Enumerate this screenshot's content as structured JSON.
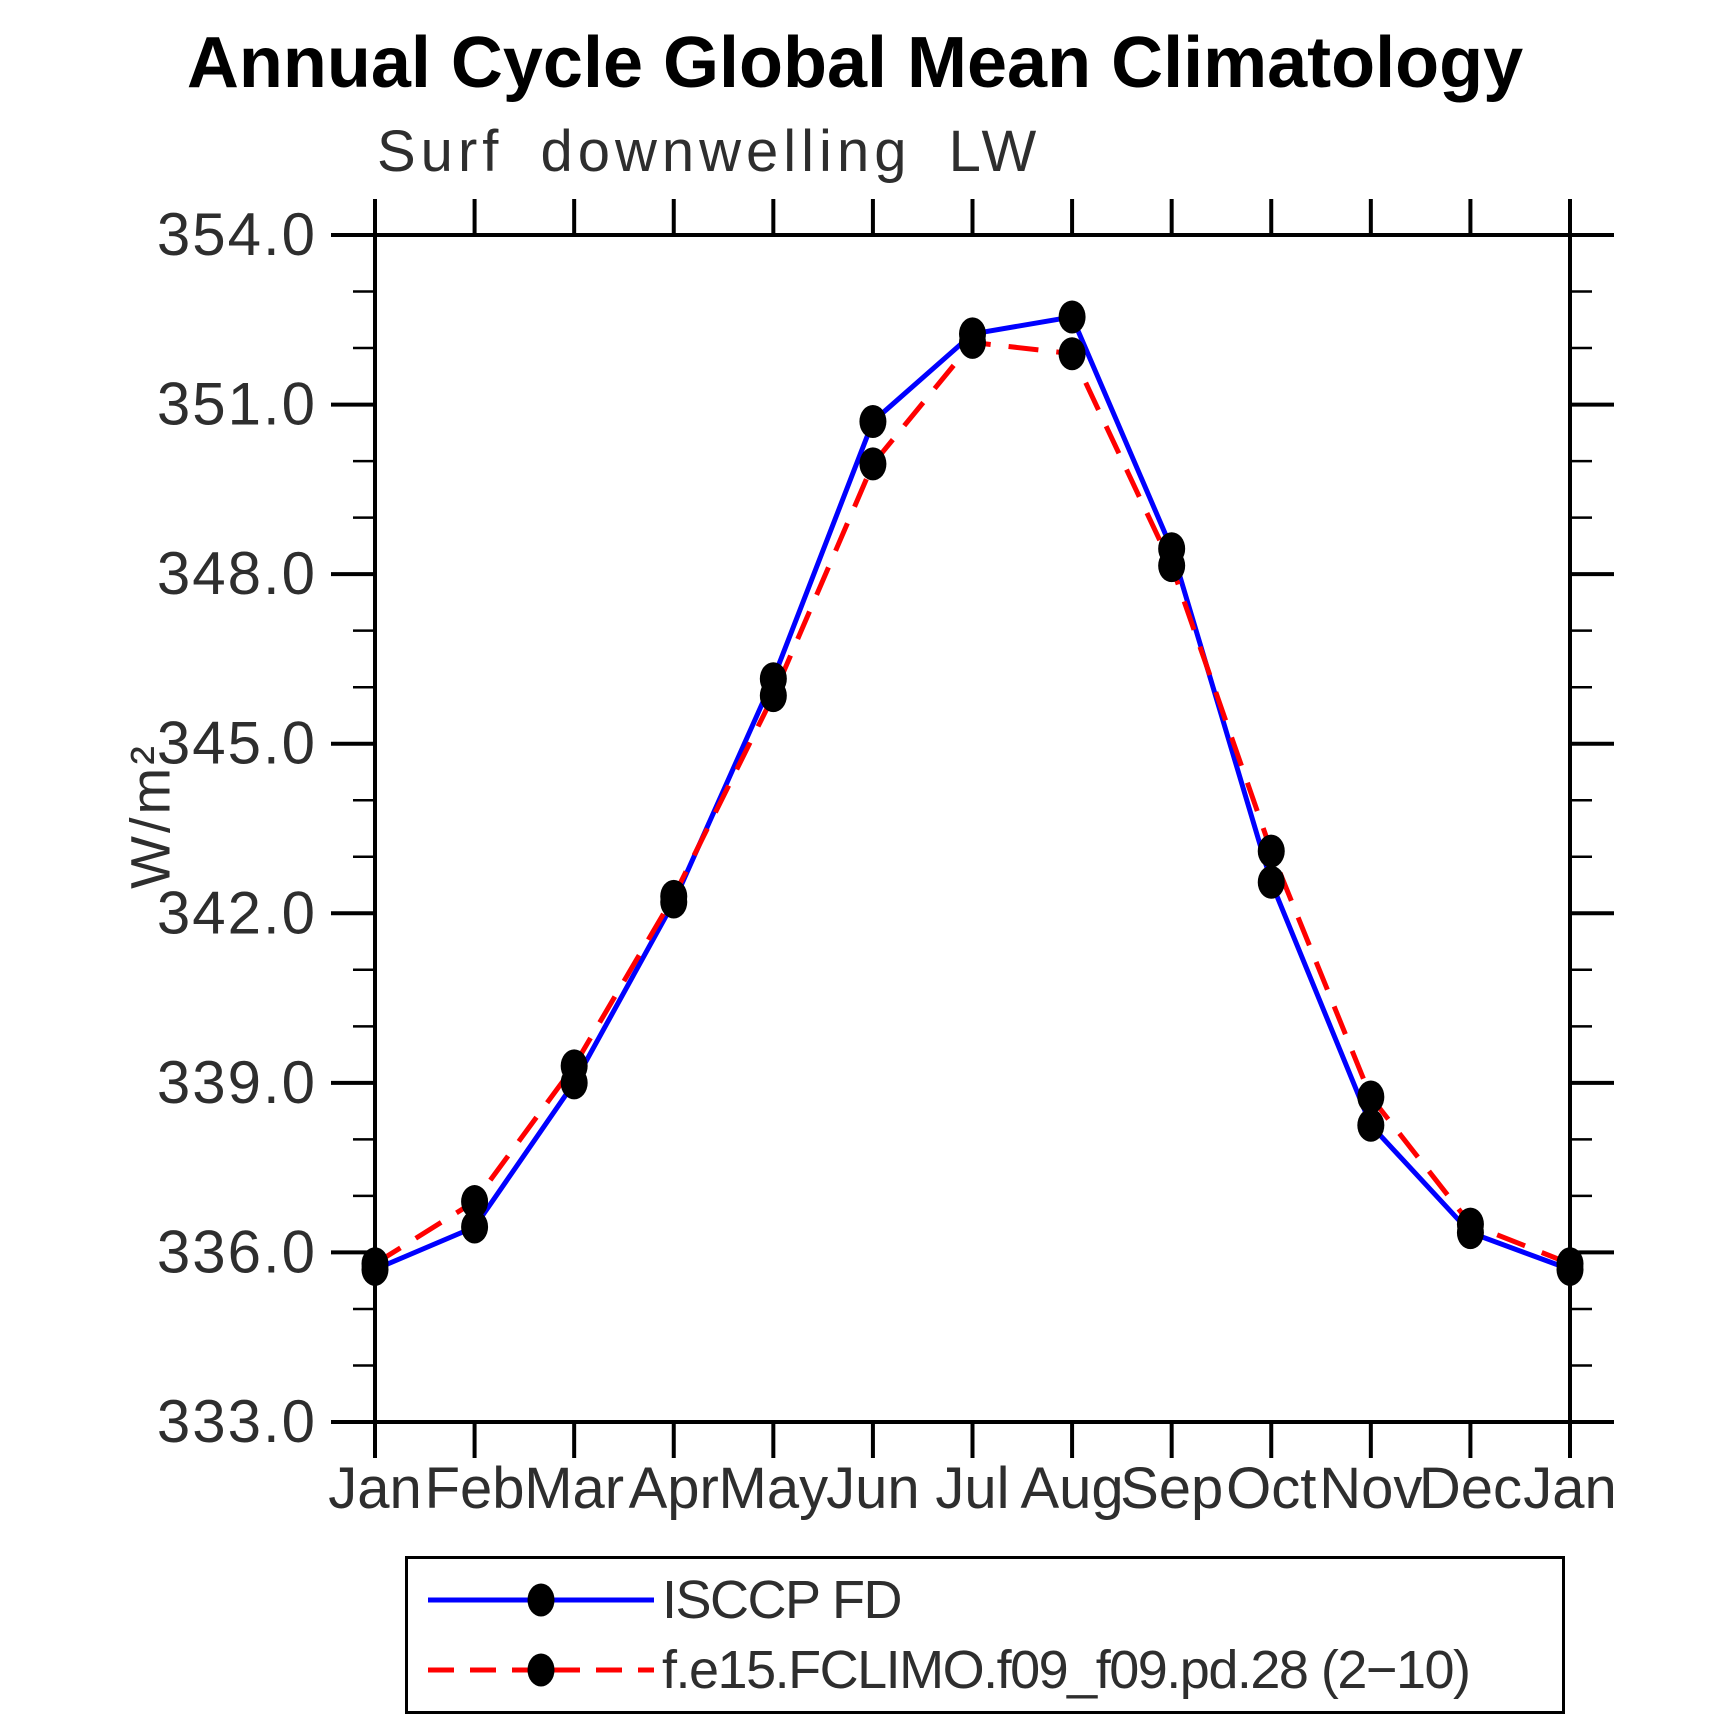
{
  "chart_data": {
    "type": "line",
    "title": "Annual Cycle Global Mean Climatology",
    "subtitle": "Surf downwelling LW",
    "ylabel": "W/m²",
    "categories": [
      "Jan",
      "Feb",
      "Mar",
      "Apr",
      "May",
      "Jun",
      "Jul",
      "Aug",
      "Sep",
      "Oct",
      "Nov",
      "Dec",
      "Jan"
    ],
    "series": [
      {
        "name": "ISCCP FD",
        "color": "#0000ff",
        "line_style": "solid",
        "marker": "filled-circle",
        "marker_color": "#000000",
        "values": [
          335.7,
          336.45,
          339.0,
          342.2,
          346.15,
          350.7,
          352.25,
          352.55,
          348.45,
          342.55,
          338.25,
          336.35,
          335.7
        ]
      },
      {
        "name": "f.e15.FCLIMO.f09_f09.pd.28 (2−10)",
        "color": "#ff0000",
        "line_style": "dashed",
        "marker": "filled-circle",
        "marker_color": "#000000",
        "values": [
          335.8,
          336.9,
          339.3,
          342.3,
          345.85,
          349.95,
          352.1,
          351.9,
          348.15,
          343.1,
          338.75,
          336.5,
          335.8
        ]
      }
    ],
    "ylim": [
      333.0,
      354.0
    ],
    "ytick_major_step": 3,
    "ytick_minor_step": 1,
    "ytick_labels": [
      "333.0",
      "336.0",
      "339.0",
      "342.0",
      "345.0",
      "348.0",
      "351.0",
      "354.0"
    ],
    "grid": false,
    "legend_position": "bottom-left-box"
  }
}
